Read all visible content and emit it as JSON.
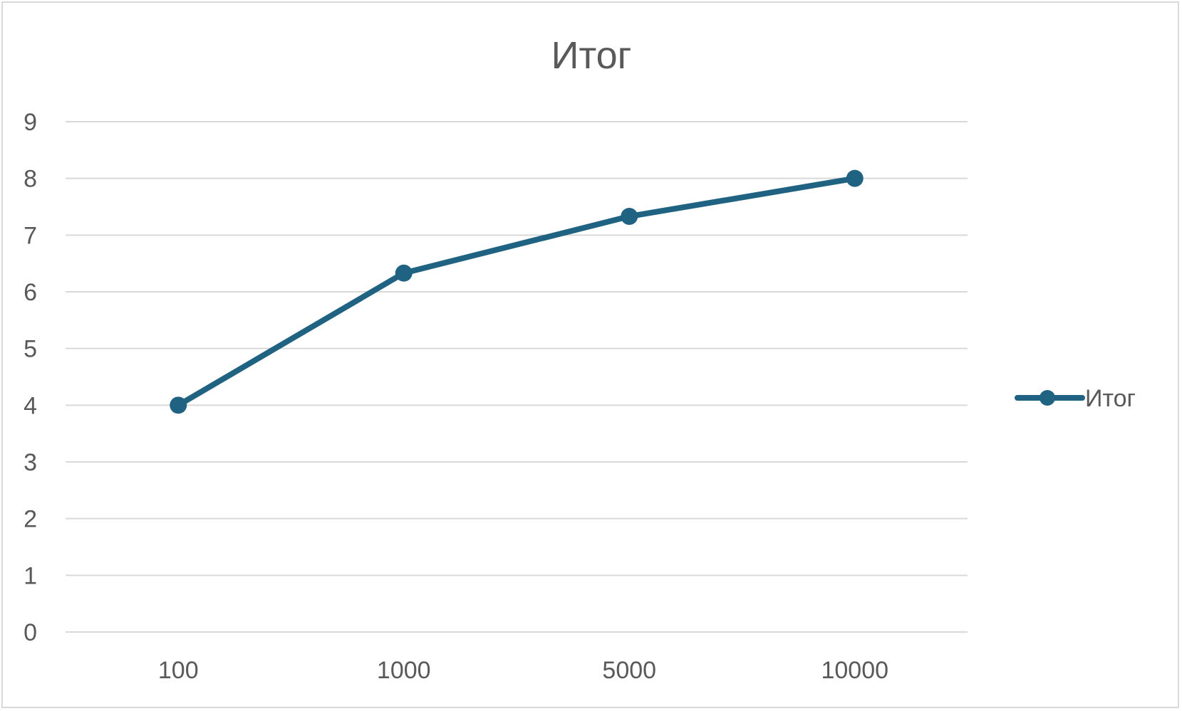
{
  "chart_data": {
    "type": "line",
    "title": "Итог",
    "xlabel": "",
    "ylabel": "",
    "categories": [
      "100",
      "1000",
      "5000",
      "10000"
    ],
    "series": [
      {
        "name": "Итог",
        "values": [
          4,
          6.33,
          7.33,
          8
        ],
        "color": "#1f6282"
      }
    ],
    "ylim": [
      0,
      9
    ],
    "yticks": [
      "0",
      "1",
      "2",
      "3",
      "4",
      "5",
      "6",
      "7",
      "8",
      "9"
    ],
    "grid": true,
    "legend_position": "right"
  }
}
